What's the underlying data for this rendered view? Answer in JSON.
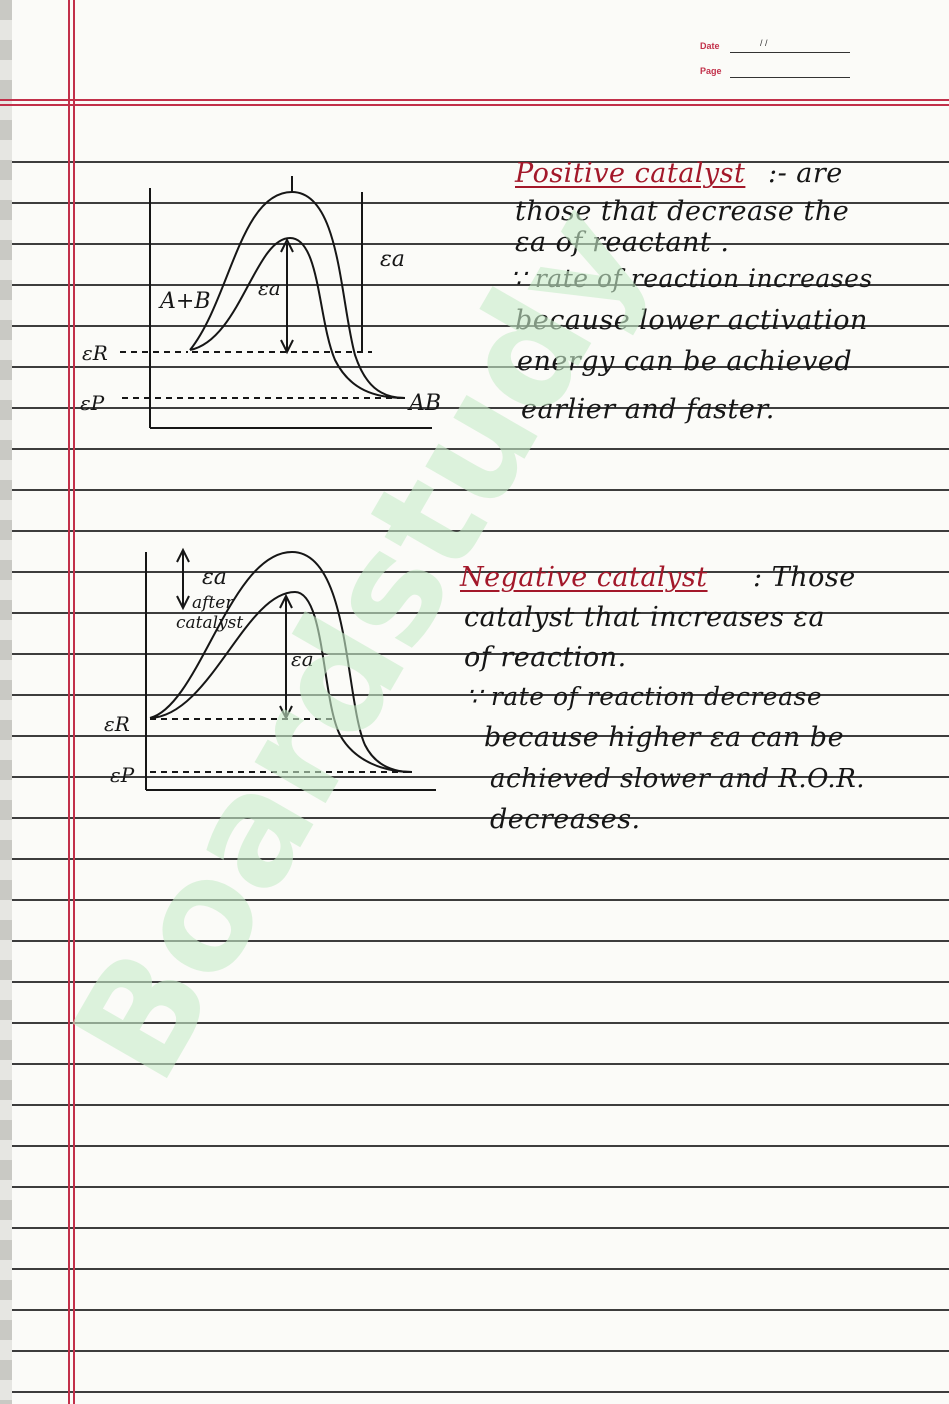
{
  "header": {
    "date_label": "Date",
    "page_label": "Page",
    "date_slashes": "/     /"
  },
  "positive": {
    "heading": "Positive catalyst",
    "lines": [
      ":- are",
      "those that decrease the",
      "εa of reactant .",
      "∵ rate of reaction increases",
      "because lower activation",
      "energy can be achieved",
      "earlier and faster."
    ],
    "diagram": {
      "reactants": "A+B",
      "products": "AB",
      "er": "εR",
      "ep": "εP",
      "ea_outer": "εa",
      "ea_inner": "εa"
    }
  },
  "negative": {
    "heading": "Negative catalyst",
    "lines": [
      ": Those",
      "catalyst that increases εa",
      "of reaction.",
      "∵ rate of reaction decrease",
      "because higher εa can be",
      "achieved slower and R.O.R.",
      "decreases."
    ],
    "diagram": {
      "er": "εR",
      "ep": "εP",
      "ea_top": "εa",
      "after_1": "after",
      "after_2": "catalyst",
      "ea_inner": "εa"
    }
  },
  "watermark": "Boardstudy",
  "colors": {
    "margin_red": "#c2304a",
    "ink": "#161616",
    "heading_red": "#a3182a",
    "watermark_green": "#c8ecca"
  }
}
